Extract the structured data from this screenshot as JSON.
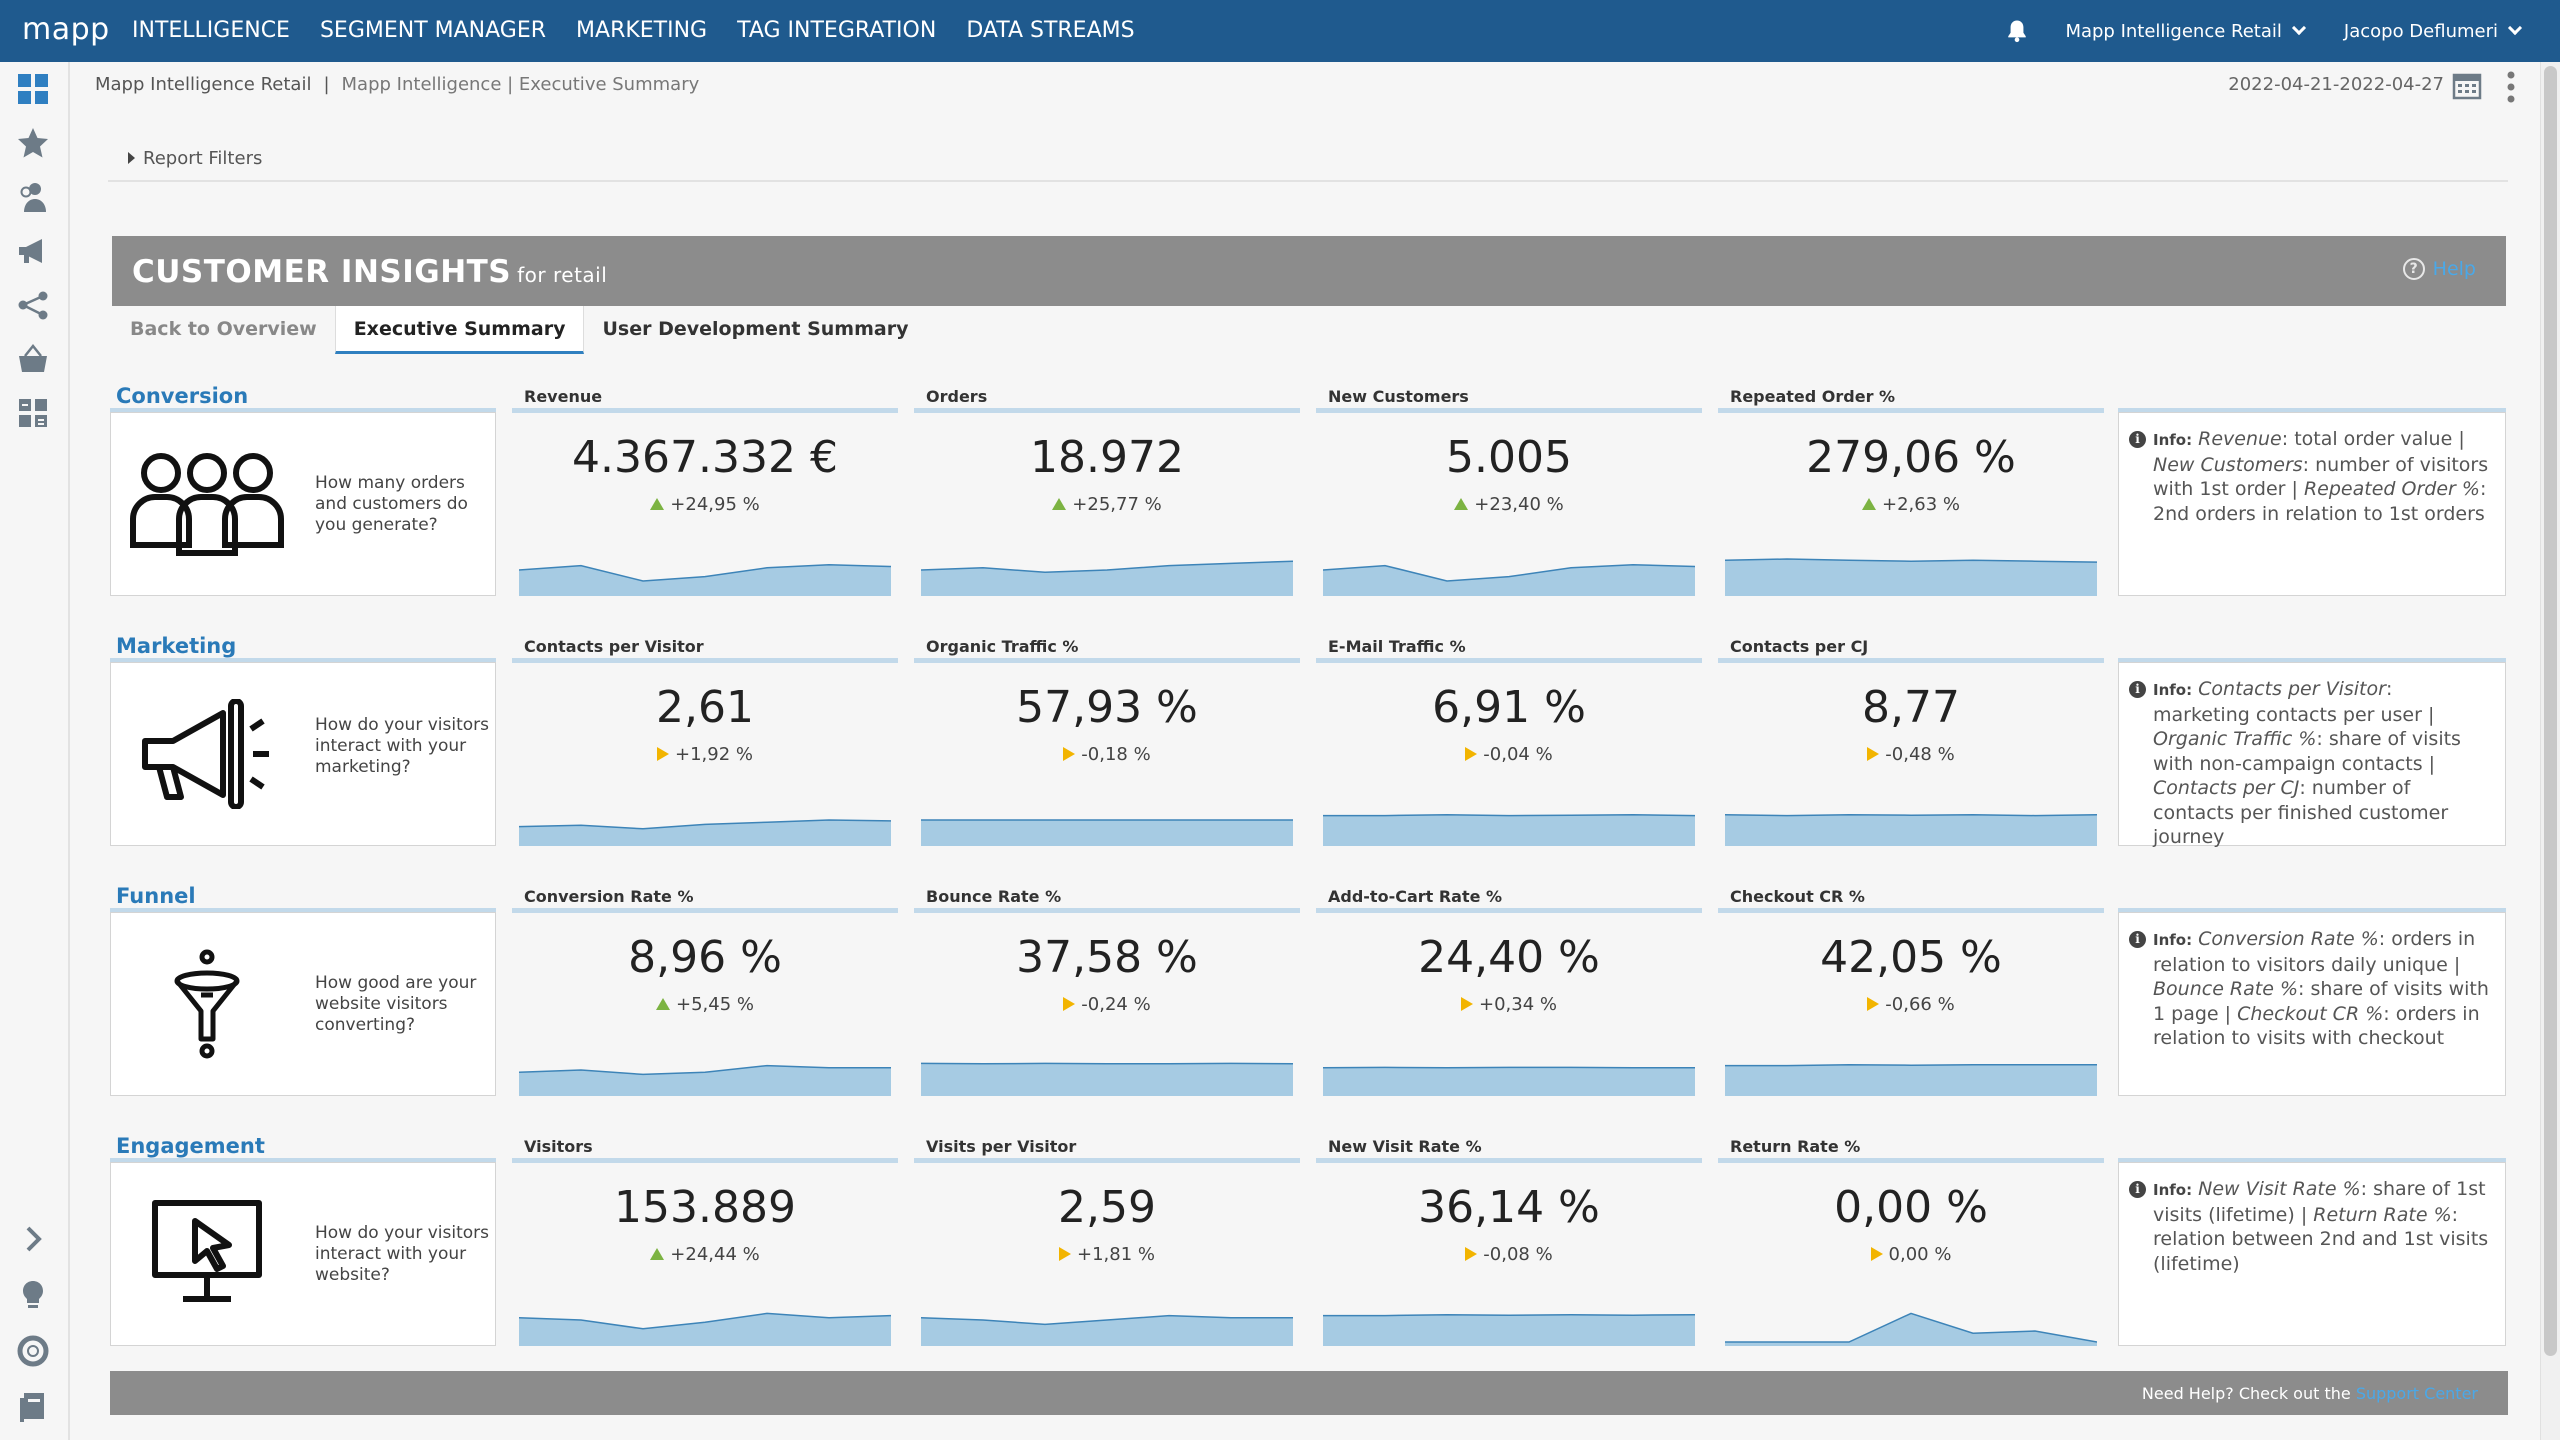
{
  "app": {
    "logo": "mapp"
  },
  "nav": {
    "items": [
      "INTELLIGENCE",
      "SEGMENT MANAGER",
      "MARKETING",
      "TAG INTEGRATION",
      "DATA STREAMS"
    ],
    "account": "Mapp Intelligence Retail",
    "user": "Jacopo Deflumeri"
  },
  "sidebar": {
    "icons": [
      "dashboard-icon",
      "star-icon",
      "users-icon",
      "megaphone-icon",
      "share-icon",
      "basket-icon",
      "calculator-icon",
      "expand-chevron-icon",
      "lightbulb-icon",
      "lifebuoy-icon",
      "book-icon"
    ]
  },
  "header": {
    "breadcrumb_root": "Mapp Intelligence Retail",
    "breadcrumb_sep": "|",
    "breadcrumb_path": "Mapp Intelligence | Executive Summary",
    "date_range": "2022-04-21-2022-04-27",
    "report_filters": "Report Filters"
  },
  "banner": {
    "title": "CUSTOMER INSIGHTS",
    "subtitle": "for retail",
    "help": "Help"
  },
  "tabs": [
    "Back to Overview",
    "Executive Summary",
    "User Development Summary"
  ],
  "sections": [
    {
      "title": "Conversion",
      "question": "How many orders and customers do you generate?",
      "icon": "people-icon",
      "kpis": [
        {
          "label": "Revenue",
          "value": "4.367.332 €",
          "delta": "+24,95 %",
          "trend": "up"
        },
        {
          "label": "Orders",
          "value": "18.972",
          "delta": "+25,77 %",
          "trend": "up"
        },
        {
          "label": "New Customers",
          "value": "5.005",
          "delta": "+23,40 %",
          "trend": "up"
        },
        {
          "label": "Repeated Order %",
          "value": "279,06 %",
          "delta": "+2,63 %",
          "trend": "up"
        }
      ],
      "info": {
        "label": "Info:",
        "parts": [
          [
            "Revenue",
            ": total order value |"
          ],
          [
            "New Customers",
            ": number of visitors with 1st order |"
          ],
          [
            "Repeated Order %",
            ": 2nd orders in relation to 1st orders"
          ]
        ]
      }
    },
    {
      "title": "Marketing",
      "question": "How do your visitors interact with your marketing?",
      "icon": "megaphone-icon",
      "kpis": [
        {
          "label": "Contacts per Visitor",
          "value": "2,61",
          "delta": "+1,92 %",
          "trend": "flat"
        },
        {
          "label": "Organic Traffic %",
          "value": "57,93 %",
          "delta": "-0,18 %",
          "trend": "flat"
        },
        {
          "label": "E-Mail Traffic %",
          "value": "6,91 %",
          "delta": "-0,04 %",
          "trend": "flat"
        },
        {
          "label": "Contacts per CJ",
          "value": "8,77",
          "delta": "-0,48 %",
          "trend": "flat"
        }
      ],
      "info": {
        "label": "Info:",
        "parts": [
          [
            "Contacts per Visitor",
            ": marketing contacts per user |"
          ],
          [
            "Organic Traffic %",
            ": share of visits with non-campaign contacts |"
          ],
          [
            "Contacts per CJ",
            ": number of contacts per finished customer journey"
          ]
        ]
      }
    },
    {
      "title": "Funnel",
      "question": "How good are your website visitors converting?",
      "icon": "funnel-icon",
      "kpis": [
        {
          "label": "Conversion Rate %",
          "value": "8,96 %",
          "delta": "+5,45 %",
          "trend": "up"
        },
        {
          "label": "Bounce Rate %",
          "value": "37,58 %",
          "delta": "-0,24 %",
          "trend": "flat"
        },
        {
          "label": "Add-to-Cart Rate %",
          "value": "24,40 %",
          "delta": "+0,34 %",
          "trend": "flat"
        },
        {
          "label": "Checkout CR %",
          "value": "42,05 %",
          "delta": "-0,66 %",
          "trend": "flat"
        }
      ],
      "info": {
        "label": "Info:",
        "parts": [
          [
            "Conversion Rate %",
            ": orders in relation to visitors daily unique |"
          ],
          [
            "Bounce Rate %",
            ": share of visits with 1 page |"
          ],
          [
            "Checkout CR %",
            ": orders in relation to visits with checkout"
          ]
        ]
      }
    },
    {
      "title": "Engagement",
      "question": "How do your visitors interact with your website?",
      "icon": "monitor-cursor-icon",
      "kpis": [
        {
          "label": "Visitors",
          "value": "153.889",
          "delta": "+24,44 %",
          "trend": "up"
        },
        {
          "label": "Visits per Visitor",
          "value": "2,59",
          "delta": "+1,81 %",
          "trend": "flat"
        },
        {
          "label": "New Visit Rate %",
          "value": "36,14 %",
          "delta": "-0,08 %",
          "trend": "flat"
        },
        {
          "label": "Return Rate %",
          "value": "0,00 %",
          "delta": "0,00 %",
          "trend": "flat"
        }
      ],
      "info": {
        "label": "Info:",
        "parts": [
          [
            "New Visit Rate %",
            ": share of 1st visits (lifetime) |"
          ],
          [
            "Return Rate %",
            ": relation between 2nd and 1st visits (lifetime)"
          ]
        ]
      }
    }
  ],
  "sparklines": [
    [
      [
        0.5,
        0.6,
        0.25,
        0.35,
        0.55,
        0.62,
        0.58
      ],
      [
        0.5,
        0.55,
        0.45,
        0.5,
        0.6,
        0.65,
        0.7
      ],
      [
        0.5,
        0.6,
        0.25,
        0.35,
        0.55,
        0.62,
        0.58
      ],
      [
        0.72,
        0.75,
        0.72,
        0.7,
        0.72,
        0.7,
        0.68
      ]
    ],
    [
      [
        0.35,
        0.38,
        0.3,
        0.4,
        0.45,
        0.5,
        0.48
      ],
      [
        0.5,
        0.5,
        0.5,
        0.5,
        0.5,
        0.5,
        0.5
      ],
      [
        0.6,
        0.6,
        0.62,
        0.6,
        0.61,
        0.62,
        0.6
      ],
      [
        0.62,
        0.6,
        0.62,
        0.61,
        0.62,
        0.6,
        0.62
      ]
    ],
    [
      [
        0.45,
        0.5,
        0.4,
        0.45,
        0.6,
        0.55,
        0.55
      ],
      [
        0.65,
        0.64,
        0.65,
        0.64,
        0.64,
        0.65,
        0.64
      ],
      [
        0.55,
        0.56,
        0.55,
        0.56,
        0.56,
        0.55,
        0.55
      ],
      [
        0.6,
        0.6,
        0.62,
        0.61,
        0.62,
        0.62,
        0.62
      ]
    ],
    [
      [
        0.55,
        0.5,
        0.3,
        0.45,
        0.65,
        0.55,
        0.6
      ],
      [
        0.55,
        0.5,
        0.4,
        0.5,
        0.6,
        0.55,
        0.55
      ],
      [
        0.6,
        0.6,
        0.62,
        0.61,
        0.62,
        0.61,
        0.62
      ],
      [
        0.0,
        0.0,
        0.0,
        0.65,
        0.2,
        0.25,
        0.0
      ]
    ]
  ],
  "footer": {
    "text": "Need Help? Check out the",
    "link": "Support Center"
  },
  "colors": {
    "topbar": "#1f5a8e",
    "accent": "#2a7ab8",
    "spark_fill": "#a6cbe3",
    "spark_line": "#3d84b8",
    "banner": "#8c8c8c"
  }
}
